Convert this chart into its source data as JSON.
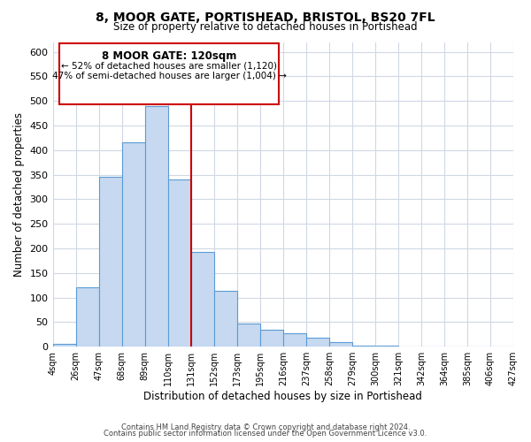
{
  "title": "8, MOOR GATE, PORTISHEAD, BRISTOL, BS20 7FL",
  "subtitle": "Size of property relative to detached houses in Portishead",
  "xlabel": "Distribution of detached houses by size in Portishead",
  "ylabel": "Number of detached properties",
  "bin_edges": [
    "4sqm",
    "26sqm",
    "47sqm",
    "68sqm",
    "89sqm",
    "110sqm",
    "131sqm",
    "152sqm",
    "173sqm",
    "195sqm",
    "216sqm",
    "237sqm",
    "258sqm",
    "279sqm",
    "300sqm",
    "321sqm",
    "342sqm",
    "364sqm",
    "385sqm",
    "406sqm",
    "427sqm"
  ],
  "bar_heights": [
    5,
    120,
    345,
    415,
    490,
    340,
    193,
    113,
    47,
    35,
    28,
    18,
    10,
    3,
    2,
    1,
    1,
    0,
    1,
    0
  ],
  "bar_color": "#c6d9f0",
  "bar_edge_color": "#5b9bd5",
  "marker_bin_index": 5,
  "marker_label": "8 MOOR GATE: 120sqm",
  "annotation_line1": "← 52% of detached houses are smaller (1,120)",
  "annotation_line2": "47% of semi-detached houses are larger (1,004) →",
  "marker_color": "#cc0000",
  "ylim": [
    0,
    620
  ],
  "yticks": [
    0,
    50,
    100,
    150,
    200,
    250,
    300,
    350,
    400,
    450,
    500,
    550,
    600
  ],
  "footer_line1": "Contains HM Land Registry data © Crown copyright and database right 2024.",
  "footer_line2": "Contains public sector information licensed under the Open Government Licence v3.0.",
  "bg_color": "#ffffff",
  "grid_color": "#d0d8e4",
  "annotation_box_color": "#ffffff",
  "annotation_box_edge": "#cc0000"
}
